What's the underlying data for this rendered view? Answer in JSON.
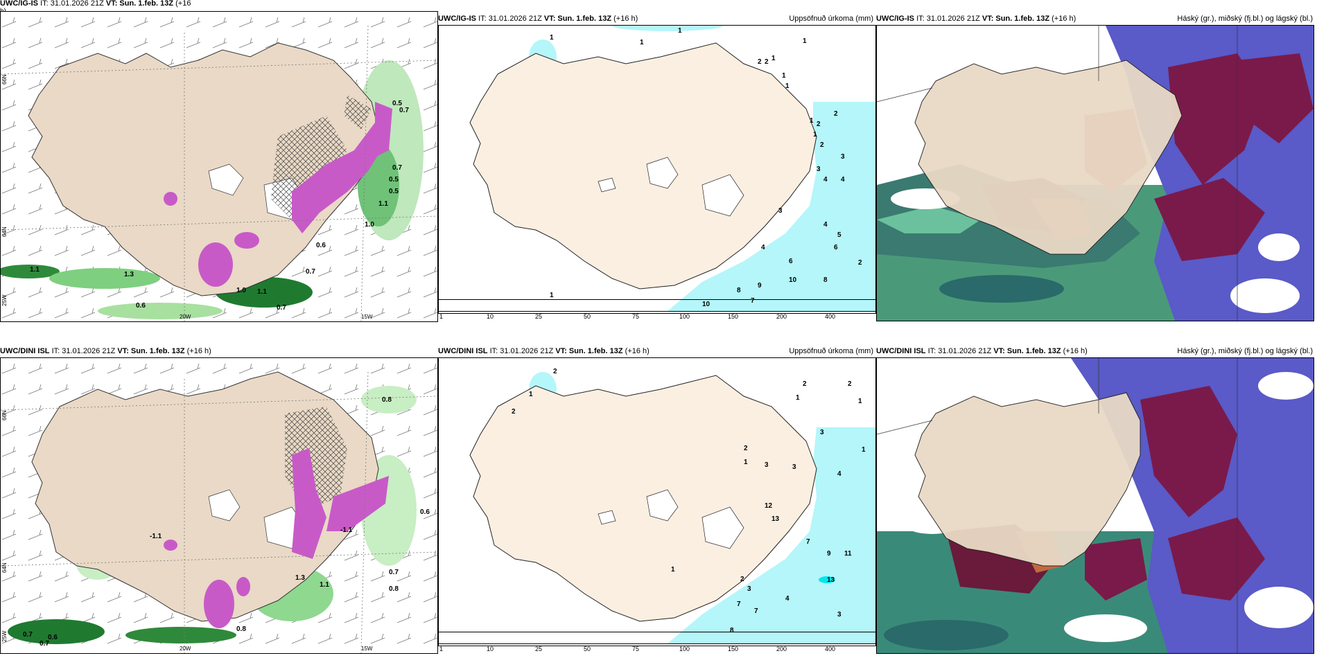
{
  "panels": {
    "p1": {
      "title_model": "UWC/IG-IS",
      "title_it": "IT: 31.01.2026 21Z",
      "title_vt": "VT: Sun. 1.feb. 13Z",
      "title_lead": "(+16",
      "title_lead2": "h)"
    },
    "p2": {
      "title_model": "UWC/IG-IS",
      "title_it": "IT: 31.01.2026 21Z",
      "title_vt": "VT: Sun. 1.feb. 13Z",
      "title_lead": "(+16 h)",
      "right": "Uppsöfnuð úrkoma (mm)"
    },
    "p3": {
      "title_model": "UWC/IG-IS",
      "title_it": "IT: 31.01.2026 21Z",
      "title_vt": "VT: Sun. 1.feb. 13Z",
      "title_lead": "(+16 h)",
      "right": "Háský (gr.), miðský (fj.bl.) og lágský (bl.)"
    },
    "p4": {
      "title_model": "UWC/DINI ISL",
      "title_it": "IT: 31.01.2026 21Z",
      "title_vt": "VT: Sun. 1.feb. 13Z",
      "title_lead": "(+16 h)"
    },
    "p5": {
      "title_model": "UWC/DINI ISL",
      "title_it": "IT: 31.01.2026 21Z",
      "title_vt": "VT: Sun. 1.feb. 13Z",
      "title_lead": "(+16 h)",
      "right": "Uppsöfnuð úrkoma (mm)"
    },
    "p6": {
      "title_model": "UWC/DINI ISL",
      "title_it": "IT: 31.01.2026 21Z",
      "title_vt": "VT: Sun. 1.feb. 13Z",
      "title_lead": "(+16 h)",
      "right": "Háský (gr.), miðský (fj.bl.) og lágský (bl.)"
    }
  },
  "axis_labels": {
    "lon_20": "20W",
    "lon_15": "15W",
    "lon_25": "25W",
    "lat_66": "66N",
    "lat_64": "64N"
  },
  "colorbar": {
    "ticks": [
      "1",
      "10",
      "25",
      "50",
      "75",
      "100",
      "150",
      "200",
      "400"
    ],
    "colors": [
      "#b4f6fa",
      "#00e8ee",
      "#00bfe6",
      "#2b6fe0",
      "#1c2cb8",
      "#5a0048",
      "#8b0070",
      "#e800a8",
      "#f4b0ee"
    ]
  },
  "precip_labels_top": [
    "1",
    "1",
    "2",
    "2",
    "1",
    "1",
    "1",
    "1",
    "1",
    "2",
    "2",
    "1",
    "2",
    "3",
    "3",
    "4",
    "4",
    "3",
    "4",
    "5",
    "6",
    "2",
    "4",
    "6",
    "10",
    "8",
    "9",
    "8",
    "7",
    "10",
    "1",
    "1"
  ],
  "precip_labels_bottom": [
    "2",
    "1",
    "2",
    "2",
    "2",
    "1",
    "1",
    "3",
    "3",
    "4",
    "1",
    "2",
    "1",
    "3",
    "12",
    "13",
    "7",
    "9",
    "11",
    "13",
    "1",
    "2",
    "3",
    "7",
    "7",
    "4",
    "8",
    "3"
  ],
  "temp_labels_top": [
    "0.5",
    "0.7",
    "0.5",
    "0.7",
    "0.5",
    "1.0",
    "1.1",
    "1.1",
    "0.6",
    "0.7",
    "1.0",
    "1.1",
    "0.7",
    "0.6",
    "1.3"
  ],
  "temp_labels_bottom": [
    "0.8",
    "0.6",
    "0.7",
    "0.8",
    "0.7",
    "0.6",
    "0.7",
    "0.8",
    "-1.1",
    "-1.1",
    "1.3",
    "1.1"
  ]
}
